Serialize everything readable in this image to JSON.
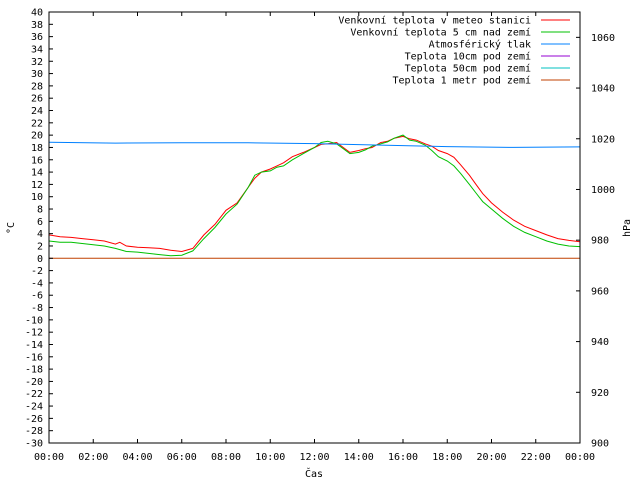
{
  "chart_data": {
    "type": "line",
    "xlabel": "Čas",
    "ylabel": "°C",
    "y2label": "hPa",
    "xlim": [
      0,
      24
    ],
    "ylim": [
      -30,
      40
    ],
    "y2lim": [
      900,
      1070
    ],
    "x_ticks": [
      "00:00",
      "02:00",
      "04:00",
      "06:00",
      "08:00",
      "10:00",
      "12:00",
      "14:00",
      "16:00",
      "18:00",
      "20:00",
      "22:00",
      "00:00"
    ],
    "y_ticks": [
      40,
      38,
      36,
      34,
      32,
      30,
      28,
      26,
      24,
      22,
      20,
      18,
      16,
      14,
      12,
      10,
      8,
      6,
      4,
      2,
      0,
      -2,
      -4,
      -6,
      -8,
      -10,
      -12,
      -14,
      -16,
      -18,
      -20,
      -22,
      -24,
      -26,
      -28,
      -30
    ],
    "y2_ticks": [
      1060,
      1040,
      1020,
      1000,
      980,
      960,
      940,
      920,
      900
    ],
    "legend_position": "top-right",
    "grid": false,
    "series": [
      {
        "name": "Venkovní teplota v meteo stanici",
        "color": "#ff0000",
        "axis": "left",
        "points": [
          [
            0,
            3.8
          ],
          [
            0.5,
            3.5
          ],
          [
            1,
            3.4
          ],
          [
            1.5,
            3.2
          ],
          [
            2,
            3.0
          ],
          [
            2.5,
            2.8
          ],
          [
            3,
            2.3
          ],
          [
            3.2,
            2.6
          ],
          [
            3.5,
            2.0
          ],
          [
            4,
            1.8
          ],
          [
            4.5,
            1.7
          ],
          [
            5,
            1.6
          ],
          [
            5.5,
            1.3
          ],
          [
            6,
            1.1
          ],
          [
            6.5,
            1.6
          ],
          [
            7,
            3.8
          ],
          [
            7.5,
            5.5
          ],
          [
            8,
            7.8
          ],
          [
            8.5,
            9.0
          ],
          [
            9,
            11.5
          ],
          [
            9.3,
            13.0
          ],
          [
            9.6,
            14.0
          ],
          [
            10,
            14.5
          ],
          [
            10.3,
            15.0
          ],
          [
            10.6,
            15.5
          ],
          [
            11,
            16.5
          ],
          [
            11.5,
            17.2
          ],
          [
            12,
            18.0
          ],
          [
            12.3,
            18.5
          ],
          [
            12.6,
            18.6
          ],
          [
            13,
            18.8
          ],
          [
            13.3,
            18.0
          ],
          [
            13.6,
            17.2
          ],
          [
            14,
            17.5
          ],
          [
            14.3,
            17.8
          ],
          [
            14.6,
            18.0
          ],
          [
            15,
            18.8
          ],
          [
            15.3,
            19.0
          ],
          [
            15.6,
            19.5
          ],
          [
            16,
            19.8
          ],
          [
            16.3,
            19.4
          ],
          [
            16.6,
            19.2
          ],
          [
            17,
            18.6
          ],
          [
            17.3,
            18.2
          ],
          [
            17.6,
            17.5
          ],
          [
            18,
            17.0
          ],
          [
            18.3,
            16.4
          ],
          [
            18.6,
            15.2
          ],
          [
            19,
            13.5
          ],
          [
            19.3,
            12.0
          ],
          [
            19.6,
            10.5
          ],
          [
            20,
            9.0
          ],
          [
            20.5,
            7.5
          ],
          [
            21,
            6.2
          ],
          [
            21.5,
            5.2
          ],
          [
            22,
            4.5
          ],
          [
            22.5,
            3.8
          ],
          [
            23,
            3.2
          ],
          [
            23.5,
            2.9
          ],
          [
            24,
            2.7
          ]
        ]
      },
      {
        "name": "Venkovní teplota 5 cm nad zemí",
        "color": "#00c000",
        "axis": "left",
        "points": [
          [
            0,
            2.8
          ],
          [
            0.5,
            2.6
          ],
          [
            1,
            2.6
          ],
          [
            1.5,
            2.4
          ],
          [
            2,
            2.2
          ],
          [
            2.5,
            2.0
          ],
          [
            3,
            1.6
          ],
          [
            3.5,
            1.1
          ],
          [
            4,
            1.0
          ],
          [
            4.5,
            0.8
          ],
          [
            5,
            0.6
          ],
          [
            5.5,
            0.4
          ],
          [
            6,
            0.5
          ],
          [
            6.5,
            1.2
          ],
          [
            7,
            3.2
          ],
          [
            7.5,
            5.0
          ],
          [
            8,
            7.2
          ],
          [
            8.5,
            8.8
          ],
          [
            9,
            11.5
          ],
          [
            9.3,
            13.5
          ],
          [
            9.6,
            14.0
          ],
          [
            10,
            14.2
          ],
          [
            10.3,
            14.8
          ],
          [
            10.6,
            15.0
          ],
          [
            11,
            16.0
          ],
          [
            11.5,
            17.0
          ],
          [
            12,
            18.0
          ],
          [
            12.3,
            18.8
          ],
          [
            12.6,
            19.0
          ],
          [
            13,
            18.6
          ],
          [
            13.3,
            17.8
          ],
          [
            13.6,
            17.0
          ],
          [
            14,
            17.2
          ],
          [
            14.3,
            17.6
          ],
          [
            14.6,
            18.2
          ],
          [
            15,
            18.6
          ],
          [
            15.3,
            18.9
          ],
          [
            15.6,
            19.5
          ],
          [
            16,
            20.0
          ],
          [
            16.3,
            19.2
          ],
          [
            16.6,
            19.0
          ],
          [
            17,
            18.4
          ],
          [
            17.3,
            17.5
          ],
          [
            17.6,
            16.5
          ],
          [
            18,
            15.8
          ],
          [
            18.3,
            15.0
          ],
          [
            18.6,
            13.8
          ],
          [
            19,
            12.0
          ],
          [
            19.3,
            10.6
          ],
          [
            19.6,
            9.2
          ],
          [
            20,
            8.0
          ],
          [
            20.5,
            6.5
          ],
          [
            21,
            5.2
          ],
          [
            21.5,
            4.2
          ],
          [
            22,
            3.5
          ],
          [
            22.5,
            2.8
          ],
          [
            23,
            2.3
          ],
          [
            23.5,
            2.0
          ],
          [
            24,
            1.9
          ]
        ]
      },
      {
        "name": "Atmosférický tlak",
        "color": "#0080ff",
        "axis": "right",
        "points": [
          [
            0,
            1018.6
          ],
          [
            3,
            1018.3
          ],
          [
            6,
            1018.4
          ],
          [
            9,
            1018.4
          ],
          [
            12,
            1018.1
          ],
          [
            15,
            1017.5
          ],
          [
            18,
            1016.9
          ],
          [
            21,
            1016.6
          ],
          [
            24,
            1016.8
          ]
        ]
      },
      {
        "name": "Teplota 10cm pod zemí",
        "color": "#9400d3",
        "axis": "left",
        "points": []
      },
      {
        "name": "Teplota 50cm pod zemí",
        "color": "#00c0c0",
        "axis": "left",
        "points": []
      },
      {
        "name": "Teplota 1 metr pod zemí",
        "color": "#c04000",
        "axis": "left",
        "points": [
          [
            0,
            0
          ],
          [
            24,
            0
          ]
        ]
      }
    ]
  }
}
